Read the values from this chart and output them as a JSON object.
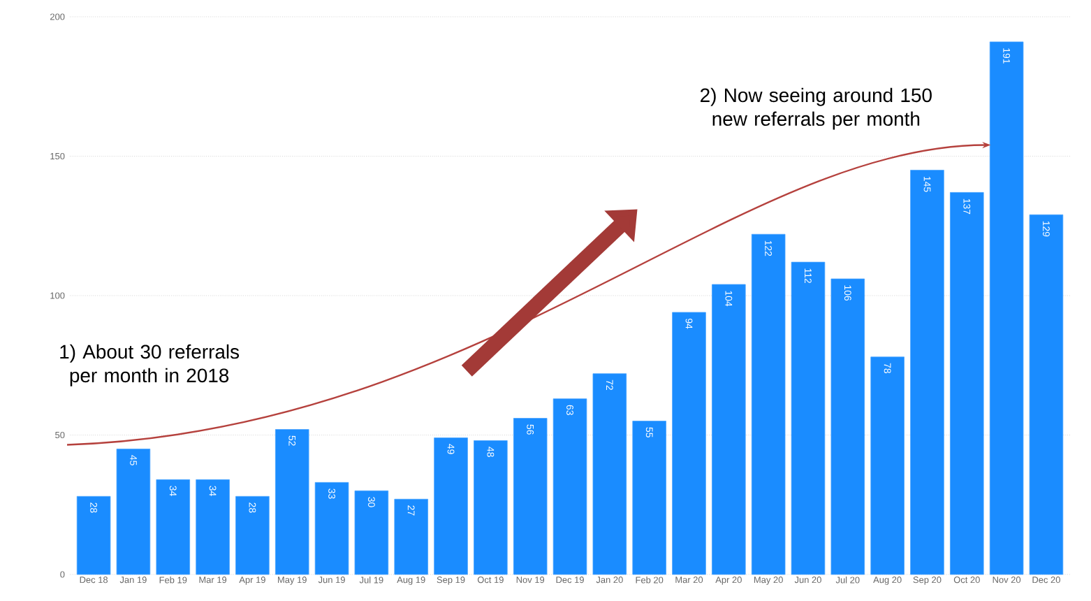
{
  "chart_data": {
    "type": "bar",
    "categories": [
      "Dec 18",
      "Jan 19",
      "Feb 19",
      "Mar 19",
      "Apr 19",
      "May 19",
      "Jun 19",
      "Jul 19",
      "Aug 19",
      "Sep 19",
      "Oct 19",
      "Nov 19",
      "Dec 19",
      "Jan 20",
      "Feb 20",
      "Mar 20",
      "Apr 20",
      "May 20",
      "Jun 20",
      "Jul 20",
      "Aug 20",
      "Sep 20",
      "Oct 20",
      "Nov 20",
      "Dec 20"
    ],
    "values": [
      28,
      45,
      34,
      34,
      28,
      52,
      33,
      30,
      27,
      49,
      48,
      56,
      63,
      72,
      55,
      94,
      104,
      122,
      112,
      106,
      78,
      145,
      137,
      191,
      129
    ],
    "color": "#1a8cff",
    "ylim": [
      0,
      200
    ],
    "yticks": [
      0,
      50,
      100,
      150,
      200
    ],
    "grid": "y",
    "data_labels": true,
    "annotations": [
      "1) About 30 referrals per month in 2018",
      "2) Now seeing around 150 new referrals per month"
    ]
  }
}
